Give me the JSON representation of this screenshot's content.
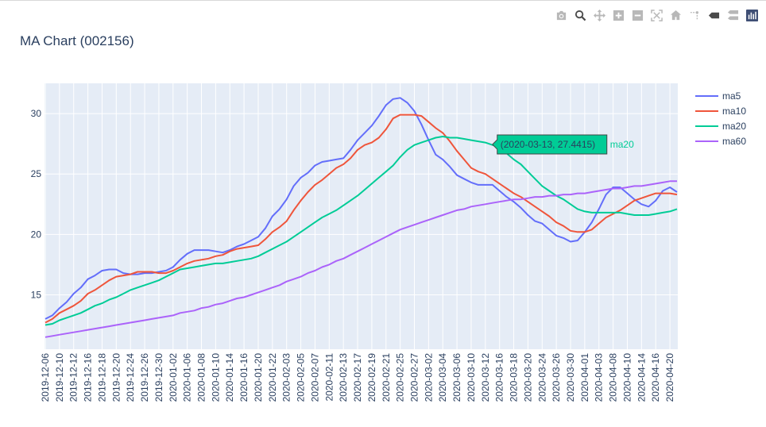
{
  "modebar": {
    "buttons": [
      "camera-icon",
      "zoom-icon",
      "pan-icon",
      "zoom-in-icon",
      "zoom-out-icon",
      "autoscale-icon",
      "reset-axes-icon",
      "spike-lines-icon",
      "hover-closest-icon",
      "hover-compare-icon",
      "plotly-logo-icon"
    ]
  },
  "chart_data": {
    "type": "line",
    "title": "MA Chart (002156)",
    "xlabel": "",
    "ylabel": "",
    "ylim": [
      10.5,
      32.5
    ],
    "yticks": [
      15,
      20,
      25,
      30
    ],
    "grid": true,
    "legend_position": "top-right",
    "x_start": "2019-12-06",
    "x_end": "2020-04-21",
    "xticks": [
      "2019-12-06",
      "2019-12-10",
      "2019-12-12",
      "2019-12-16",
      "2019-12-18",
      "2019-12-20",
      "2019-12-24",
      "2019-12-26",
      "2019-12-30",
      "2020-01-02",
      "2020-01-06",
      "2020-01-08",
      "2020-01-10",
      "2020-01-14",
      "2020-01-16",
      "2020-01-20",
      "2020-01-22",
      "2020-02-03",
      "2020-02-05",
      "2020-02-07",
      "2020-02-11",
      "2020-02-13",
      "2020-02-17",
      "2020-02-19",
      "2020-02-21",
      "2020-02-25",
      "2020-02-27",
      "2020-03-02",
      "2020-03-04",
      "2020-03-06",
      "2020-03-10",
      "2020-03-12",
      "2020-03-16",
      "2020-03-18",
      "2020-03-20",
      "2020-03-24",
      "2020-03-26",
      "2020-03-30",
      "2020-04-01",
      "2020-04-03",
      "2020-04-08",
      "2020-04-10",
      "2020-04-14",
      "2020-04-16",
      "2020-04-20"
    ],
    "series": [
      {
        "name": "ma5",
        "color": "#636efa",
        "x": [
          "2019-12-06",
          "2019-12-09",
          "2019-12-10",
          "2019-12-11",
          "2019-12-12",
          "2019-12-13",
          "2019-12-16",
          "2019-12-17",
          "2019-12-18",
          "2019-12-19",
          "2019-12-20",
          "2019-12-23",
          "2019-12-24",
          "2019-12-25",
          "2019-12-26",
          "2019-12-27",
          "2019-12-30",
          "2019-12-31",
          "2020-01-02",
          "2020-01-03",
          "2020-01-06",
          "2020-01-07",
          "2020-01-08",
          "2020-01-09",
          "2020-01-10",
          "2020-01-13",
          "2020-01-14",
          "2020-01-15",
          "2020-01-16",
          "2020-01-17",
          "2020-01-20",
          "2020-01-21",
          "2020-01-22",
          "2020-01-23",
          "2020-02-03",
          "2020-02-04",
          "2020-02-05",
          "2020-02-06",
          "2020-02-07",
          "2020-02-10",
          "2020-02-11",
          "2020-02-12",
          "2020-02-13",
          "2020-02-14",
          "2020-02-17",
          "2020-02-18",
          "2020-02-19",
          "2020-02-20",
          "2020-02-21",
          "2020-02-24",
          "2020-02-25",
          "2020-02-26",
          "2020-02-27",
          "2020-02-28",
          "2020-03-02",
          "2020-03-03",
          "2020-03-04",
          "2020-03-05",
          "2020-03-06",
          "2020-03-09",
          "2020-03-10",
          "2020-03-11",
          "2020-03-12",
          "2020-03-13",
          "2020-03-16",
          "2020-03-17",
          "2020-03-18",
          "2020-03-19",
          "2020-03-20",
          "2020-03-23",
          "2020-03-24",
          "2020-03-25",
          "2020-03-26",
          "2020-03-27",
          "2020-03-30",
          "2020-03-31",
          "2020-04-01",
          "2020-04-02",
          "2020-04-03",
          "2020-04-07",
          "2020-04-08",
          "2020-04-09",
          "2020-04-10",
          "2020-04-13",
          "2020-04-14",
          "2020-04-15",
          "2020-04-16",
          "2020-04-17",
          "2020-04-20",
          "2020-04-21"
        ],
        "values": [
          13.0,
          13.3,
          13.9,
          14.4,
          15.1,
          15.6,
          16.3,
          16.6,
          17.0,
          17.1,
          17.1,
          16.8,
          16.7,
          16.7,
          16.8,
          16.8,
          16.9,
          17.0,
          17.3,
          17.9,
          18.4,
          18.7,
          18.7,
          18.7,
          18.6,
          18.5,
          18.7,
          19.0,
          19.2,
          19.5,
          19.8,
          20.5,
          21.5,
          22.1,
          22.9,
          24.0,
          24.7,
          25.1,
          25.7,
          26.0,
          26.1,
          26.2,
          26.3,
          27.0,
          27.8,
          28.4,
          29.0,
          29.8,
          30.7,
          31.2,
          31.3,
          30.9,
          30.2,
          29.1,
          27.8,
          26.6,
          26.2,
          25.6,
          24.9,
          24.6,
          24.3,
          24.1,
          24.1,
          24.1,
          23.6,
          23.1,
          22.7,
          22.2,
          21.6,
          21.1,
          20.9,
          20.4,
          19.9,
          19.7,
          19.4,
          19.5,
          20.2,
          21.0,
          22.1,
          23.3,
          23.9,
          23.9,
          23.4,
          22.9,
          22.5,
          22.3,
          22.8,
          23.6,
          23.9,
          23.5
        ]
      },
      {
        "name": "ma10",
        "color": "#ef553b",
        "x": [
          "2019-12-06",
          "2019-12-09",
          "2019-12-10",
          "2019-12-11",
          "2019-12-12",
          "2019-12-13",
          "2019-12-16",
          "2019-12-17",
          "2019-12-18",
          "2019-12-19",
          "2019-12-20",
          "2019-12-23",
          "2019-12-24",
          "2019-12-25",
          "2019-12-26",
          "2019-12-27",
          "2019-12-30",
          "2019-12-31",
          "2020-01-02",
          "2020-01-03",
          "2020-01-06",
          "2020-01-07",
          "2020-01-08",
          "2020-01-09",
          "2020-01-10",
          "2020-01-13",
          "2020-01-14",
          "2020-01-15",
          "2020-01-16",
          "2020-01-17",
          "2020-01-20",
          "2020-01-21",
          "2020-01-22",
          "2020-01-23",
          "2020-02-03",
          "2020-02-04",
          "2020-02-05",
          "2020-02-06",
          "2020-02-07",
          "2020-02-10",
          "2020-02-11",
          "2020-02-12",
          "2020-02-13",
          "2020-02-14",
          "2020-02-17",
          "2020-02-18",
          "2020-02-19",
          "2020-02-20",
          "2020-02-21",
          "2020-02-24",
          "2020-02-25",
          "2020-02-26",
          "2020-02-27",
          "2020-02-28",
          "2020-03-02",
          "2020-03-03",
          "2020-03-04",
          "2020-03-05",
          "2020-03-06",
          "2020-03-09",
          "2020-03-10",
          "2020-03-11",
          "2020-03-12",
          "2020-03-13",
          "2020-03-16",
          "2020-03-17",
          "2020-03-18",
          "2020-03-19",
          "2020-03-20",
          "2020-03-23",
          "2020-03-24",
          "2020-03-25",
          "2020-03-26",
          "2020-03-27",
          "2020-03-30",
          "2020-03-31",
          "2020-04-01",
          "2020-04-02",
          "2020-04-03",
          "2020-04-07",
          "2020-04-08",
          "2020-04-09",
          "2020-04-10",
          "2020-04-13",
          "2020-04-14",
          "2020-04-15",
          "2020-04-16",
          "2020-04-17",
          "2020-04-20",
          "2020-04-21"
        ],
        "values": [
          12.7,
          13.0,
          13.5,
          13.8,
          14.1,
          14.5,
          15.1,
          15.4,
          15.8,
          16.2,
          16.5,
          16.6,
          16.7,
          16.9,
          16.9,
          16.9,
          16.8,
          16.8,
          17.0,
          17.3,
          17.6,
          17.8,
          17.9,
          18.0,
          18.2,
          18.3,
          18.6,
          18.8,
          18.9,
          19.0,
          19.1,
          19.6,
          20.2,
          20.6,
          21.1,
          22.0,
          22.8,
          23.5,
          24.1,
          24.5,
          25.0,
          25.5,
          25.8,
          26.3,
          27.0,
          27.4,
          27.6,
          28.0,
          28.7,
          29.6,
          29.9,
          29.9,
          29.9,
          29.8,
          29.3,
          28.8,
          28.4,
          27.7,
          26.9,
          26.2,
          25.5,
          25.2,
          25.0,
          24.6,
          24.2,
          23.8,
          23.4,
          23.1,
          22.7,
          22.3,
          21.9,
          21.5,
          21.0,
          20.7,
          20.3,
          20.2,
          20.2,
          20.4,
          20.9,
          21.4,
          21.7,
          22.0,
          22.4,
          22.8,
          23.0,
          23.2,
          23.4,
          23.4,
          23.4,
          23.3
        ]
      },
      {
        "name": "ma20",
        "color": "#00cc96",
        "x": [
          "2019-12-06",
          "2019-12-09",
          "2019-12-10",
          "2019-12-11",
          "2019-12-12",
          "2019-12-13",
          "2019-12-16",
          "2019-12-17",
          "2019-12-18",
          "2019-12-19",
          "2019-12-20",
          "2019-12-23",
          "2019-12-24",
          "2019-12-25",
          "2019-12-26",
          "2019-12-27",
          "2019-12-30",
          "2019-12-31",
          "2020-01-02",
          "2020-01-03",
          "2020-01-06",
          "2020-01-07",
          "2020-01-08",
          "2020-01-09",
          "2020-01-10",
          "2020-01-13",
          "2020-01-14",
          "2020-01-15",
          "2020-01-16",
          "2020-01-17",
          "2020-01-20",
          "2020-01-21",
          "2020-01-22",
          "2020-01-23",
          "2020-02-03",
          "2020-02-04",
          "2020-02-05",
          "2020-02-06",
          "2020-02-07",
          "2020-02-10",
          "2020-02-11",
          "2020-02-12",
          "2020-02-13",
          "2020-02-14",
          "2020-02-17",
          "2020-02-18",
          "2020-02-19",
          "2020-02-20",
          "2020-02-21",
          "2020-02-24",
          "2020-02-25",
          "2020-02-26",
          "2020-02-27",
          "2020-02-28",
          "2020-03-02",
          "2020-03-03",
          "2020-03-04",
          "2020-03-05",
          "2020-03-06",
          "2020-03-09",
          "2020-03-10",
          "2020-03-11",
          "2020-03-12",
          "2020-03-13",
          "2020-03-16",
          "2020-03-17",
          "2020-03-18",
          "2020-03-19",
          "2020-03-20",
          "2020-03-23",
          "2020-03-24",
          "2020-03-25",
          "2020-03-26",
          "2020-03-27",
          "2020-03-30",
          "2020-03-31",
          "2020-04-01",
          "2020-04-02",
          "2020-04-03",
          "2020-04-07",
          "2020-04-08",
          "2020-04-09",
          "2020-04-10",
          "2020-04-13",
          "2020-04-14",
          "2020-04-15",
          "2020-04-16",
          "2020-04-17",
          "2020-04-20",
          "2020-04-21"
        ],
        "values": [
          12.5,
          12.6,
          12.9,
          13.1,
          13.3,
          13.5,
          13.8,
          14.1,
          14.3,
          14.6,
          14.8,
          15.1,
          15.4,
          15.6,
          15.8,
          16.0,
          16.2,
          16.5,
          16.8,
          17.1,
          17.2,
          17.3,
          17.4,
          17.5,
          17.6,
          17.6,
          17.7,
          17.8,
          17.9,
          18.0,
          18.2,
          18.5,
          18.8,
          19.1,
          19.4,
          19.8,
          20.2,
          20.6,
          21.0,
          21.4,
          21.7,
          22.0,
          22.4,
          22.8,
          23.2,
          23.7,
          24.2,
          24.7,
          25.2,
          25.7,
          26.4,
          27.0,
          27.4,
          27.6,
          27.8,
          28.0,
          28.1,
          28.0,
          28.0,
          27.9,
          27.8,
          27.7,
          27.6,
          27.4,
          27.2,
          26.7,
          26.2,
          25.8,
          25.2,
          24.6,
          24.0,
          23.6,
          23.2,
          22.9,
          22.5,
          22.1,
          21.9,
          21.8,
          21.8,
          21.8,
          21.8,
          21.8,
          21.7,
          21.6,
          21.6,
          21.6,
          21.7,
          21.8,
          21.9,
          22.1
        ]
      },
      {
        "name": "ma60",
        "color": "#ab63fa",
        "x": [
          "2019-12-06",
          "2019-12-09",
          "2019-12-10",
          "2019-12-11",
          "2019-12-12",
          "2019-12-13",
          "2019-12-16",
          "2019-12-17",
          "2019-12-18",
          "2019-12-19",
          "2019-12-20",
          "2019-12-23",
          "2019-12-24",
          "2019-12-25",
          "2019-12-26",
          "2019-12-27",
          "2019-12-30",
          "2019-12-31",
          "2020-01-02",
          "2020-01-03",
          "2020-01-06",
          "2020-01-07",
          "2020-01-08",
          "2020-01-09",
          "2020-01-10",
          "2020-01-13",
          "2020-01-14",
          "2020-01-15",
          "2020-01-16",
          "2020-01-17",
          "2020-01-20",
          "2020-01-21",
          "2020-01-22",
          "2020-01-23",
          "2020-02-03",
          "2020-02-04",
          "2020-02-05",
          "2020-02-06",
          "2020-02-07",
          "2020-02-10",
          "2020-02-11",
          "2020-02-12",
          "2020-02-13",
          "2020-02-14",
          "2020-02-17",
          "2020-02-18",
          "2020-02-19",
          "2020-02-20",
          "2020-02-21",
          "2020-02-24",
          "2020-02-25",
          "2020-02-26",
          "2020-02-27",
          "2020-02-28",
          "2020-03-02",
          "2020-03-03",
          "2020-03-04",
          "2020-03-05",
          "2020-03-06",
          "2020-03-09",
          "2020-03-10",
          "2020-03-11",
          "2020-03-12",
          "2020-03-13",
          "2020-03-16",
          "2020-03-17",
          "2020-03-18",
          "2020-03-19",
          "2020-03-20",
          "2020-03-23",
          "2020-03-24",
          "2020-03-25",
          "2020-03-26",
          "2020-03-27",
          "2020-03-30",
          "2020-03-31",
          "2020-04-01",
          "2020-04-02",
          "2020-04-03",
          "2020-04-07",
          "2020-04-08",
          "2020-04-09",
          "2020-04-10",
          "2020-04-13",
          "2020-04-14",
          "2020-04-15",
          "2020-04-16",
          "2020-04-17",
          "2020-04-20",
          "2020-04-21"
        ],
        "values": [
          11.5,
          11.6,
          11.7,
          11.8,
          11.9,
          12.0,
          12.1,
          12.2,
          12.3,
          12.4,
          12.5,
          12.6,
          12.7,
          12.8,
          12.9,
          13.0,
          13.1,
          13.2,
          13.3,
          13.5,
          13.6,
          13.7,
          13.9,
          14.0,
          14.2,
          14.3,
          14.5,
          14.7,
          14.8,
          15.0,
          15.2,
          15.4,
          15.6,
          15.8,
          16.1,
          16.3,
          16.5,
          16.8,
          17.0,
          17.3,
          17.5,
          17.8,
          18.0,
          18.3,
          18.6,
          18.9,
          19.2,
          19.5,
          19.8,
          20.1,
          20.4,
          20.6,
          20.8,
          21.0,
          21.2,
          21.4,
          21.6,
          21.8,
          22.0,
          22.1,
          22.3,
          22.4,
          22.5,
          22.6,
          22.7,
          22.8,
          22.9,
          22.9,
          23.0,
          23.1,
          23.1,
          23.2,
          23.2,
          23.3,
          23.3,
          23.4,
          23.4,
          23.5,
          23.6,
          23.7,
          23.8,
          23.8,
          23.9,
          24.0,
          24.0,
          24.1,
          24.2,
          24.3,
          24.4,
          24.4
        ]
      }
    ],
    "hover": {
      "series": "ma20",
      "x": "2020-03-13",
      "y": 27.4415,
      "text": "(2020-03-13, 27.4415)",
      "label": "ma20"
    }
  }
}
